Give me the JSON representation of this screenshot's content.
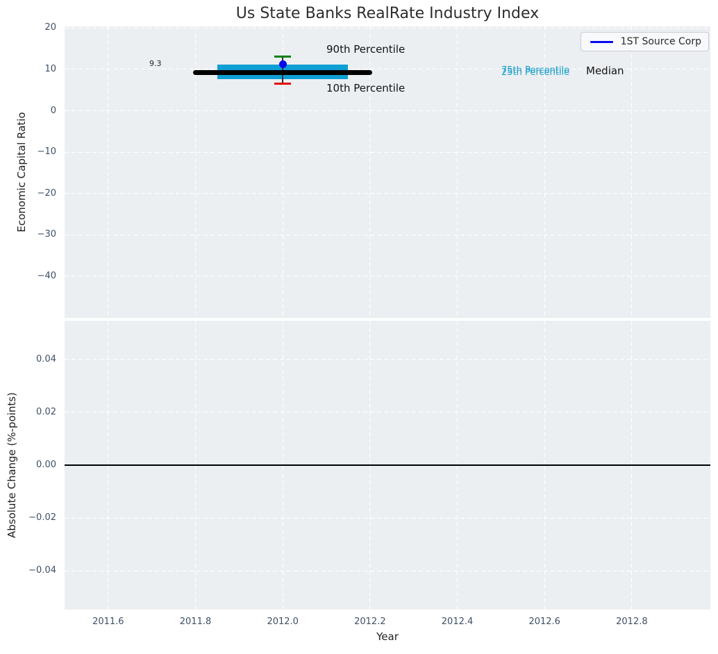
{
  "figure": {
    "title": "Us State Banks RealRate Industry Index"
  },
  "chart_data": [
    {
      "type": "box-distribution-timeseries",
      "subplot": "top",
      "ylabel": "Economic Capital Ratio",
      "xlim": [
        2011.5,
        2012.98
      ],
      "ylim": [
        -50.1,
        20.4
      ],
      "xticks": [
        2011.6,
        2011.8,
        2012.0,
        2012.2,
        2012.4,
        2012.6,
        2012.8
      ],
      "yticks": [
        20,
        10,
        0,
        -10,
        -20,
        -30,
        -40
      ],
      "grid": "white-dashed",
      "legend": {
        "label": "1ST Source Corp",
        "position": "upper-right"
      },
      "company_series": {
        "name": "1ST Source Corp",
        "marker": "circle",
        "x": [
          2012
        ],
        "y": [
          11.2
        ]
      },
      "distribution": {
        "year": 2012,
        "median": 9.3,
        "p90": 13.1,
        "p75": 11.2,
        "p25": 7.7,
        "p10": 6.6,
        "median_span": [
          2011.795,
          2012.205
        ],
        "band_span": [
          2011.85,
          2012.15
        ]
      },
      "annotations": {
        "value": "9.3",
        "p90": "90th Percentile",
        "p10": "10th Percentile",
        "p75": "75th Percentile",
        "p25": "25th Percentile",
        "median": "Median"
      },
      "colors": {
        "band": "#0d9fd4",
        "median_line": "#000000",
        "p90_cap": "#008000",
        "p10_cap": "#e60000",
        "company": "#0808f0",
        "percentile_text": "#1fa0cc"
      }
    },
    {
      "type": "line",
      "subplot": "bottom",
      "xlabel": "Year",
      "ylabel": "Absolute Change (%-points)",
      "xlim": [
        2011.5,
        2012.98
      ],
      "ylim": [
        -0.0547,
        0.0547
      ],
      "xticks": [
        2011.6,
        2011.8,
        2012.0,
        2012.2,
        2012.4,
        2012.6,
        2012.8
      ],
      "yticks": [
        0.04,
        0.02,
        0.0,
        -0.02,
        -0.04
      ],
      "grid": "white-dashed",
      "series": [],
      "zero_line": {
        "value": 0,
        "color": "#000000"
      }
    }
  ]
}
